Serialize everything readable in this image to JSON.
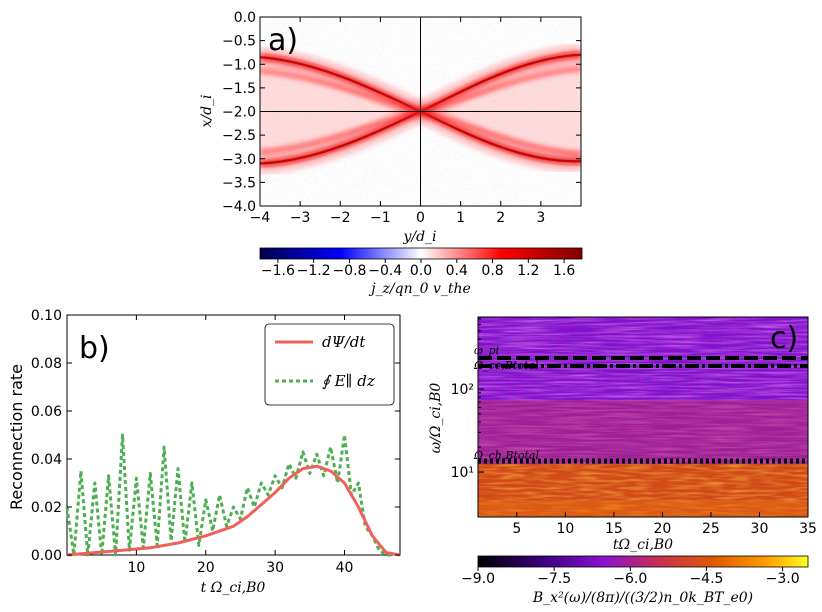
{
  "chart_data": [
    {
      "id": "a",
      "type": "heatmap",
      "panel_label": "a)",
      "xlabel": "y/d_i",
      "ylabel": "x/d_i",
      "xlim": [
        -4,
        4
      ],
      "ylim": [
        -4,
        0
      ],
      "xticks": [
        -4,
        -3,
        -2,
        -1,
        0,
        1,
        2,
        3
      ],
      "xtick_labels": [
        "−4",
        "−3",
        "−2",
        "−1",
        "0",
        "1",
        "2",
        "3"
      ],
      "yticks": [
        0,
        -0.5,
        -1,
        -1.5,
        -2,
        -2.5,
        -3,
        -3.5,
        -4
      ],
      "ytick_labels": [
        "0.0",
        "−0.5",
        "−1.0",
        "−1.5",
        "−2.0",
        "−2.5",
        "−3.0",
        "−3.5",
        "−4.0"
      ],
      "colorbar": {
        "label": "j_z/qn_0 v_the",
        "range": [
          -1.8,
          1.8
        ],
        "ticks": [
          -1.6,
          -1.2,
          -0.8,
          -0.4,
          0,
          0.4,
          0.8,
          1.2,
          1.6
        ],
        "tick_labels": [
          "−1.6",
          "−1.2",
          "−0.8",
          "−0.4",
          "0.0",
          "0.4",
          "0.8",
          "1.2",
          "1.6"
        ],
        "colormap": "seismic"
      },
      "crosshair": {
        "x": 0,
        "y": -2
      }
    },
    {
      "id": "b",
      "type": "line",
      "panel_label": "b)",
      "xlabel": "t Ω_ci,B0",
      "ylabel": "Reconnection rate",
      "xlim": [
        0,
        48
      ],
      "ylim": [
        0,
        0.1
      ],
      "xticks": [
        10,
        20,
        30,
        40
      ],
      "xtick_labels": [
        "10",
        "20",
        "30",
        "40"
      ],
      "yticks": [
        0,
        0.02,
        0.04,
        0.06,
        0.08,
        0.1
      ],
      "ytick_labels": [
        "0.00",
        "0.02",
        "0.04",
        "0.06",
        "0.08",
        "0.10"
      ],
      "legend": [
        "dΨ/dt",
        "∮ E∥ dz"
      ],
      "series": [
        {
          "name": "dΨ/dt",
          "color": "#f0605a",
          "x": [
            0,
            4,
            8,
            12,
            16,
            20,
            24,
            26,
            28,
            30,
            32,
            34,
            36,
            38,
            40,
            42,
            44,
            46,
            48
          ],
          "y": [
            0.0,
            0.001,
            0.002,
            0.003,
            0.005,
            0.008,
            0.012,
            0.016,
            0.021,
            0.026,
            0.032,
            0.036,
            0.037,
            0.035,
            0.03,
            0.02,
            0.008,
            0.001,
            0.0
          ]
        },
        {
          "name": "∮ E∥ dz",
          "color": "#4caf50",
          "x": [
            0,
            1,
            2,
            3,
            4,
            5,
            6,
            7,
            8,
            9,
            10,
            11,
            12,
            13,
            14,
            15,
            16,
            17,
            18,
            19,
            20,
            21,
            22,
            23,
            24,
            25,
            26,
            27,
            28,
            29,
            30,
            31,
            32,
            33,
            34,
            35,
            36,
            37,
            38,
            39,
            40,
            41,
            42,
            43,
            44,
            45,
            46,
            47
          ],
          "y": [
            0.02,
            0.0,
            0.035,
            0.0,
            0.03,
            0.0,
            0.033,
            0.0,
            0.05,
            0.002,
            0.032,
            0.003,
            0.034,
            0.004,
            0.045,
            0.006,
            0.036,
            0.005,
            0.03,
            0.004,
            0.023,
            0.01,
            0.025,
            0.012,
            0.02,
            0.015,
            0.028,
            0.02,
            0.03,
            0.025,
            0.033,
            0.028,
            0.038,
            0.032,
            0.043,
            0.034,
            0.042,
            0.033,
            0.045,
            0.03,
            0.05,
            0.025,
            0.03,
            0.012,
            0.008,
            0.002,
            0.0,
            0.0
          ]
        }
      ]
    },
    {
      "id": "c",
      "type": "heatmap",
      "panel_label": "c)",
      "xlabel": "tΩ_ci,B0",
      "ylabel": "ω/Ω_ci,B0",
      "xlim": [
        1,
        35
      ],
      "y_scale": "log",
      "xticks": [
        5,
        10,
        15,
        20,
        25,
        30,
        35
      ],
      "xtick_labels": [
        "5",
        "10",
        "15",
        "20",
        "25",
        "30",
        "35"
      ],
      "ytick_labels": [
        "10¹",
        "10²"
      ],
      "annotations": [
        "ω_pi",
        "Ω_ce,Btotal",
        "Ω_ch,Btotal"
      ],
      "colorbar": {
        "label": "B_x²(ω)/(8π)/((3/2)n_0k_BT_e0)",
        "range": [
          -9.0,
          -2.5
        ],
        "ticks": [
          -9.0,
          -7.5,
          -6.0,
          -4.5,
          -3.0
        ],
        "tick_labels": [
          "−9.0",
          "−7.5",
          "−6.0",
          "−4.5",
          "−3.0"
        ],
        "colormap": "gnuplot"
      }
    }
  ]
}
